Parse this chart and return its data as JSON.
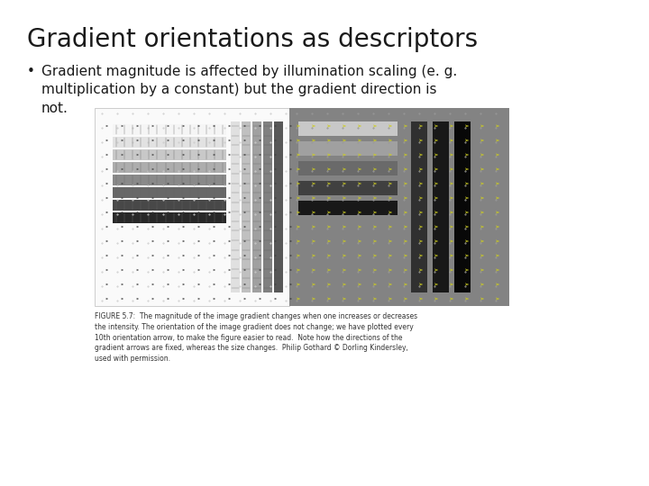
{
  "title": "Gradient orientations as descriptors",
  "bullet_text": "Gradient magnitude is affected by illumination scaling (e. g.\nmultiplication by a constant) but the gradient direction is\nnot.",
  "title_fontsize": 20,
  "bullet_fontsize": 11,
  "caption_fontsize": 5.5,
  "caption_text": "FIGURE 5.7:  The magnitude of the image gradient changes when one increases or decreases\nthe intensity. The orientation of the image gradient does not change; we have plotted every\n10th orientation arrow, to make the figure easier to read.  Note how the directions of the\ngradient arrows are fixed, whereas the size changes.  Philip Gothard © Dorling Kindersley,\nused with permission.",
  "bg_color": "#ffffff",
  "text_color": "#1a1a1a",
  "left_panel_bg": "#fafafa",
  "right_panel_bg": "#838383",
  "left_bar_colors": [
    "#f5f5f5",
    "#e2e2e2",
    "#c8c8c8",
    "#adadad",
    "#898989",
    "#686868",
    "#484848",
    "#282828"
  ],
  "right_bar_colors_h": [
    "#c8c8c8",
    "#a0a0a0",
    "#6a6a6a",
    "#404040",
    "#181818"
  ],
  "right_bar_colors_v": [
    "#303030",
    "#181818",
    "#080808"
  ],
  "v_bar_colors": [
    "#e0e0e0",
    "#c0c0c0",
    "#a0a0a0",
    "#808080",
    "#585858"
  ],
  "dot_color_left": "#cccccc",
  "dot_color_right": "#909090",
  "arrow_color_left": "#444444",
  "arrow_color_right": "#cccc22"
}
